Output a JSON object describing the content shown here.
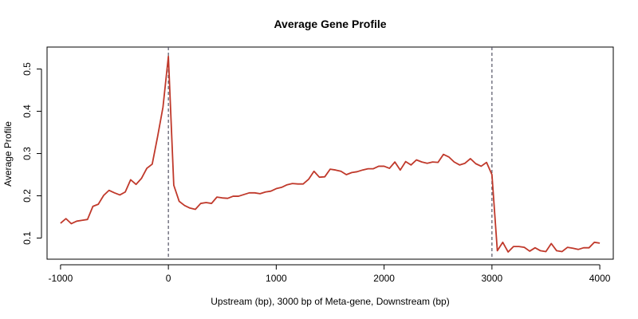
{
  "chart_data": {
    "type": "line",
    "title": "Average Gene Profile",
    "xlabel": "Upstream (bp), 3000 bp of Meta-gene, Downstream (bp)",
    "ylabel": "Average Profile",
    "xlim": [
      -1125,
      4125
    ],
    "ylim": [
      0.05,
      0.552
    ],
    "xticks": [
      -1000,
      0,
      1000,
      2000,
      3000,
      4000
    ],
    "xtick_labels": [
      "-1000",
      "0",
      "1000",
      "2000",
      "3000",
      "4000"
    ],
    "yticks": [
      0.1,
      0.2,
      0.3,
      0.4,
      0.5
    ],
    "ytick_labels": [
      "0.1",
      "0.2",
      "0.3",
      "0.4",
      "0.5"
    ],
    "grid": false,
    "vlines": [
      0,
      3000
    ],
    "line_color": "#c0392b",
    "vline_color": "#555566",
    "series": [
      {
        "x": [
          -1000,
          -950,
          -900,
          -850,
          -800,
          -750,
          -700,
          -650,
          -600,
          -550,
          -500,
          -450,
          -400,
          -350,
          -300,
          -250,
          -200,
          -150,
          -100,
          -50,
          0,
          50,
          100,
          150,
          200,
          250,
          300,
          350,
          400,
          450,
          500,
          550,
          600,
          650,
          700,
          750,
          800,
          850,
          900,
          950,
          1000,
          1050,
          1100,
          1150,
          1200,
          1250,
          1300,
          1350,
          1400,
          1450,
          1500,
          1550,
          1600,
          1650,
          1700,
          1750,
          1800,
          1850,
          1900,
          1950,
          2000,
          2050,
          2100,
          2150,
          2200,
          2250,
          2300,
          2350,
          2400,
          2450,
          2500,
          2550,
          2600,
          2650,
          2700,
          2750,
          2800,
          2850,
          2900,
          2950,
          3000,
          3050,
          3100,
          3150,
          3200,
          3250,
          3300,
          3350,
          3400,
          3450,
          3500,
          3550,
          3600,
          3650,
          3700,
          3750,
          3800,
          3850,
          3900,
          3950,
          4000
        ],
        "y": [
          0.135,
          0.146,
          0.134,
          0.14,
          0.142,
          0.144,
          0.175,
          0.18,
          0.201,
          0.213,
          0.207,
          0.202,
          0.209,
          0.238,
          0.227,
          0.241,
          0.265,
          0.275,
          0.34,
          0.41,
          0.53,
          0.225,
          0.187,
          0.177,
          0.171,
          0.168,
          0.182,
          0.184,
          0.182,
          0.197,
          0.195,
          0.194,
          0.199,
          0.199,
          0.203,
          0.207,
          0.207,
          0.205,
          0.209,
          0.211,
          0.217,
          0.22,
          0.226,
          0.229,
          0.228,
          0.228,
          0.239,
          0.258,
          0.244,
          0.245,
          0.263,
          0.261,
          0.258,
          0.25,
          0.255,
          0.257,
          0.261,
          0.264,
          0.264,
          0.27,
          0.27,
          0.265,
          0.28,
          0.261,
          0.281,
          0.273,
          0.285,
          0.28,
          0.277,
          0.28,
          0.279,
          0.298,
          0.292,
          0.28,
          0.273,
          0.277,
          0.288,
          0.276,
          0.27,
          0.279,
          0.25,
          0.07,
          0.09,
          0.067,
          0.08,
          0.08,
          0.078,
          0.069,
          0.077,
          0.07,
          0.068,
          0.087,
          0.07,
          0.068,
          0.078,
          0.076,
          0.073,
          0.077,
          0.077,
          0.09,
          0.088
        ]
      }
    ]
  }
}
